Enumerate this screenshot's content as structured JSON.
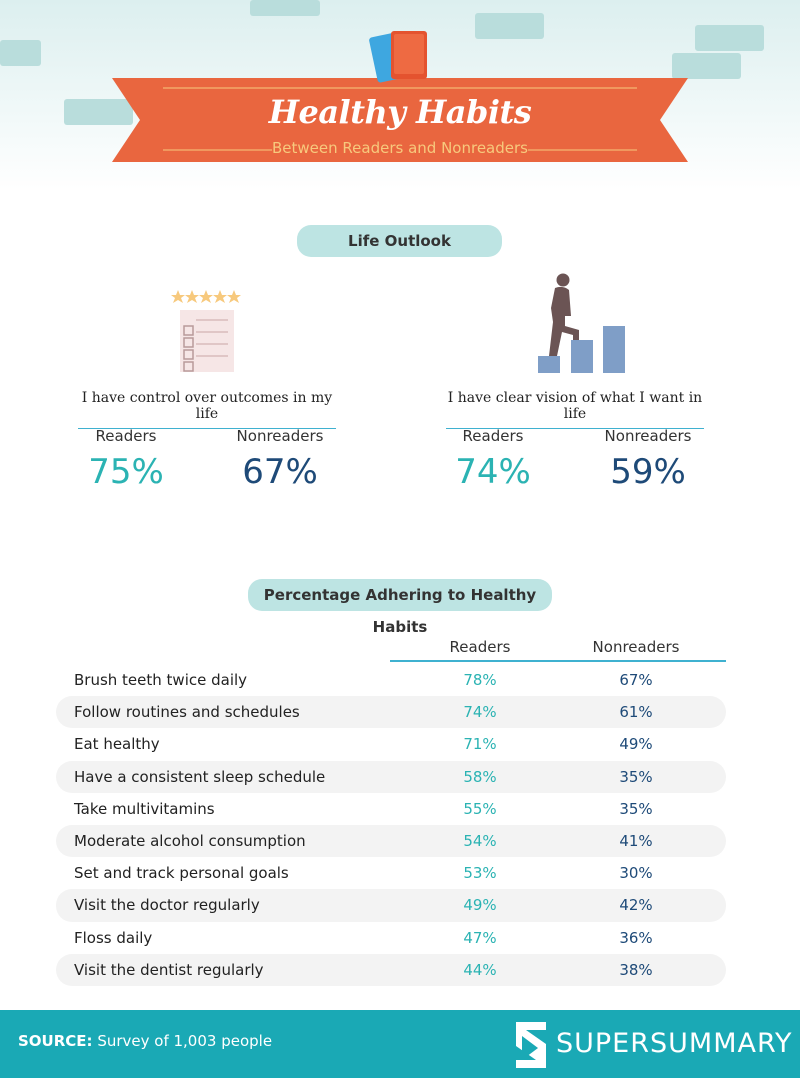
{
  "header": {
    "title": "Healthy Habits",
    "subtitle": "Between Readers and Nonreaders",
    "colors": {
      "banner": "#e9663f",
      "accent": "#f7c97d",
      "sky": "#dcefef"
    }
  },
  "life_outlook": {
    "heading": "Life Outlook",
    "items": [
      {
        "statement": "I have control over outcomes in my life",
        "icon": "checklist-icon",
        "readers_label": "Readers",
        "readers_value": "75%",
        "nonreaders_label": "Nonreaders",
        "nonreaders_value": "67%"
      },
      {
        "statement": "I have clear vision of what I want in life",
        "icon": "stairs-climber-icon",
        "readers_label": "Readers",
        "readers_value": "74%",
        "nonreaders_label": "Nonreaders",
        "nonreaders_value": "59%"
      }
    ]
  },
  "habits": {
    "heading": "Percentage Adhering to Healthy Habits",
    "columns": [
      "Readers",
      "Nonreaders"
    ],
    "rows": [
      {
        "habit": "Brush teeth twice daily",
        "readers": "78%",
        "nonreaders": "67%"
      },
      {
        "habit": "Follow routines and schedules",
        "readers": "74%",
        "nonreaders": "61%"
      },
      {
        "habit": "Eat healthy",
        "readers": "71%",
        "nonreaders": "49%"
      },
      {
        "habit": "Have a consistent sleep schedule",
        "readers": "58%",
        "nonreaders": "35%"
      },
      {
        "habit": "Take multivitamins",
        "readers": "55%",
        "nonreaders": "35%"
      },
      {
        "habit": "Moderate alcohol consumption",
        "readers": "54%",
        "nonreaders": "41%"
      },
      {
        "habit": "Set and track personal goals",
        "readers": "53%",
        "nonreaders": "30%"
      },
      {
        "habit": "Visit the doctor regularly",
        "readers": "49%",
        "nonreaders": "42%"
      },
      {
        "habit": "Floss daily",
        "readers": "47%",
        "nonreaders": "36%"
      },
      {
        "habit": "Visit the dentist regularly",
        "readers": "44%",
        "nonreaders": "38%"
      }
    ]
  },
  "footer": {
    "source_label": "SOURCE:",
    "source_text": "Survey of 1,003 people",
    "brand": "SUPERSUMMARY",
    "brand_logo": "supersummary-logo-icon",
    "color": "#1aa9b5"
  }
}
